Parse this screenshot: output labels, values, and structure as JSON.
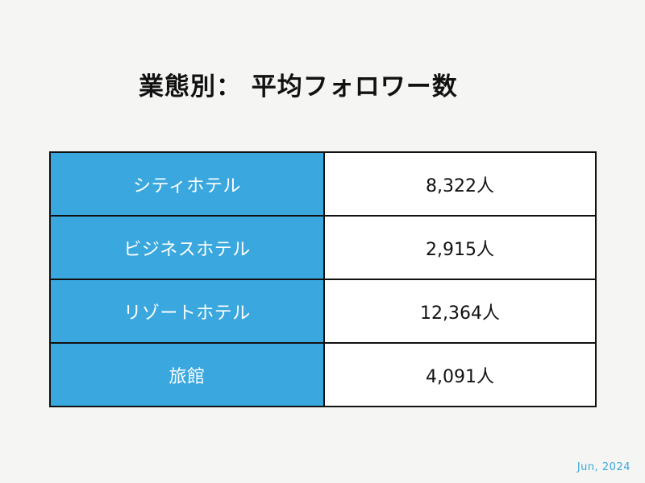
{
  "title": "業態別： 平均フォロワー数",
  "date": "Jun, 2024",
  "colors": {
    "label_background": "#3aa8de",
    "label_text": "#ffffff",
    "value_background": "#ffffff",
    "border": "#111111",
    "date_text": "#3aa8de"
  },
  "chart_data": {
    "type": "table",
    "title": "業態別： 平均フォロワー数",
    "unit": "人",
    "rows": [
      {
        "category": "シティホテル",
        "value": 8322,
        "display": "8,322人"
      },
      {
        "category": "ビジネスホテル",
        "value": 2915,
        "display": "2,915人"
      },
      {
        "category": "リゾートホテル",
        "value": 12364,
        "display": "12,364人"
      },
      {
        "category": "旅館",
        "value": 4091,
        "display": "4,091人"
      }
    ]
  }
}
